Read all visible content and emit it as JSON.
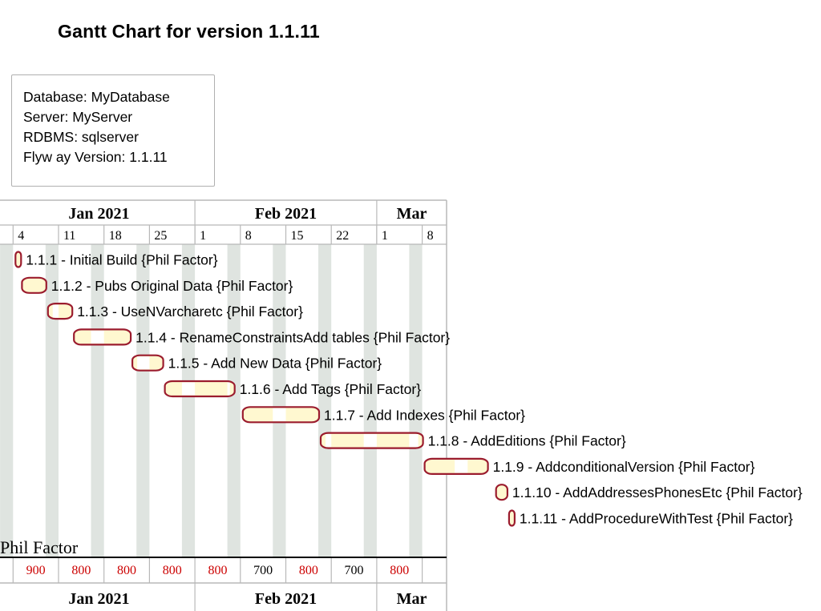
{
  "chart_data": {
    "type": "gantt",
    "title": "Gantt Chart for version 1.1.11",
    "info": [
      "Database: MyDatabase",
      "Server: MyServer",
      "RDBMS: sqlserver",
      "Flyw ay Version: 1.1.11"
    ],
    "months_top": [
      "Jan 2021",
      "Feb 2021",
      "Mar"
    ],
    "months_bottom": [
      "Jan 2021",
      "Feb 2021",
      "Mar"
    ],
    "week_labels": [
      "4",
      "11",
      "18",
      "25",
      "1",
      "8",
      "15",
      "22",
      "1",
      "8"
    ],
    "resource_label": "Phil Factor",
    "resource_loads": [
      "900",
      "800",
      "800",
      "800",
      "800",
      "700",
      "800",
      "700",
      "800"
    ],
    "overload_color": "#cc0000",
    "bar_fill": "#fff8d0",
    "bar_border": "#9b1c2e",
    "weekend_color": "#dfe4e0",
    "tasks": [
      {
        "label": "1.1.1 - Initial Build {Phil Factor}",
        "start_day": 3,
        "duration_days": 1
      },
      {
        "label": "1.1.2 - Pubs Original Data {Phil Factor}",
        "start_day": 4,
        "duration_days": 4
      },
      {
        "label": "1.1.3 - UseNVarcharetc {Phil Factor}",
        "start_day": 8,
        "duration_days": 4
      },
      {
        "label": "1.1.4 - RenameConstraintsAdd tables {Phil Factor}",
        "start_day": 12,
        "duration_days": 9
      },
      {
        "label": "1.1.5 - Add New  Data {Phil Factor}",
        "start_day": 21,
        "duration_days": 5
      },
      {
        "label": "1.1.6 - Add Tags {Phil Factor}",
        "start_day": 26,
        "duration_days": 11
      },
      {
        "label": "1.1.7 - Add Indexes {Phil Factor}",
        "start_day": 38,
        "duration_days": 12
      },
      {
        "label": "1.1.8 - AddEditions {Phil Factor}",
        "start_day": 50,
        "duration_days": 16
      },
      {
        "label": "1.1.9 - AddconditionalVersion {Phil Factor}",
        "start_day": 66,
        "duration_days": 10
      },
      {
        "label": "1.1.10 - AddAddressesPhonesEtc {Phil Factor}",
        "start_day": 77,
        "duration_days": 2
      },
      {
        "label": "1.1.11 - AddProcedureWithTest {Phil Factor}",
        "start_day": 79,
        "duration_days": 1
      }
    ]
  }
}
